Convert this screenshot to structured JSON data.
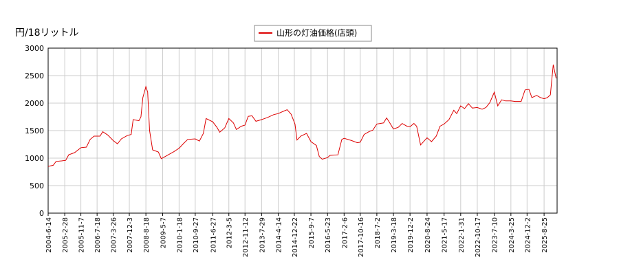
{
  "chart_data": {
    "type": "line",
    "y_label": "円/18リットル",
    "x": [
      "2004-6-14",
      "2004-9-1",
      "2004-10-15",
      "2005-1-10",
      "2005-3-15",
      "2005-5-1",
      "2005-8-1",
      "2005-11-7",
      "2006-2-1",
      "2006-4-1",
      "2006-6-1",
      "2006-9-1",
      "2006-10-15",
      "2007-1-1",
      "2007-3-26",
      "2007-6-1",
      "2007-8-1",
      "2007-11-1",
      "2008-1-1",
      "2008-2-1",
      "2008-5-1",
      "2008-6-1",
      "2008-7-1",
      "2008-8-18",
      "2008-9-15",
      "2008-10-15",
      "2008-12-1",
      "2009-3-1",
      "2009-4-15",
      "2009-7-1",
      "2009-11-1",
      "2010-1-18",
      "2010-4-1",
      "2010-6-1",
      "2010-9-27",
      "2010-12-1",
      "2011-2-1",
      "2011-3-15",
      "2011-6-27",
      "2011-9-1",
      "2011-10-15",
      "2012-1-1",
      "2012-3-5",
      "2012-5-15",
      "2012-7-1",
      "2012-9-15",
      "2012-11-12",
      "2013-1-1",
      "2013-3-1",
      "2013-5-1",
      "2013-7-29",
      "2013-11-1",
      "2014-2-1",
      "2014-4-14",
      "2014-7-1",
      "2014-9-1",
      "2014-11-1",
      "2015-1-1",
      "2015-2-1",
      "2015-4-1",
      "2015-7-1",
      "2015-9-7",
      "2015-12-1",
      "2016-1-15",
      "2016-3-1",
      "2016-5-23",
      "2016-7-1",
      "2016-11-1",
      "2017-1-1",
      "2017-2-6",
      "2017-6-1",
      "2017-9-1",
      "2017-10-16",
      "2017-12-15",
      "2018-3-1",
      "2018-5-1",
      "2018-7-2",
      "2018-10-15",
      "2018-12-1",
      "2019-1-15",
      "2019-3-18",
      "2019-6-1",
      "2019-8-1",
      "2019-10-15",
      "2019-12-2",
      "2020-2-1",
      "2020-3-15",
      "2020-5-15",
      "2020-8-24",
      "2020-11-1",
      "2021-1-15",
      "2021-3-15",
      "2021-5-17",
      "2021-8-1",
      "2021-10-15",
      "2021-12-1",
      "2022-1-31",
      "2022-4-1",
      "2022-6-1",
      "2022-8-1",
      "2022-10-17",
      "2023-1-1",
      "2023-3-1",
      "2023-5-1",
      "2023-7-10",
      "2023-9-1",
      "2023-11-1",
      "2024-1-1",
      "2024-3-25",
      "2024-6-1",
      "2024-9-1",
      "2024-11-1",
      "2025-1-1",
      "2025-2-15",
      "2025-5-1",
      "2025-7-1",
      "2025-8-25",
      "2025-10-15",
      "2025-12-1",
      "2026-1-15",
      "2026-3-1"
    ],
    "series": [
      {
        "name": "山形の灯油価格(店頭)",
        "color": "#dd0000",
        "values": [
          850,
          870,
          940,
          950,
          960,
          1060,
          1100,
          1190,
          1200,
          1340,
          1400,
          1400,
          1480,
          1420,
          1320,
          1260,
          1350,
          1410,
          1430,
          1700,
          1680,
          1750,
          2100,
          2300,
          2200,
          1500,
          1150,
          1110,
          990,
          1040,
          1120,
          1180,
          1270,
          1340,
          1350,
          1310,
          1450,
          1720,
          1660,
          1560,
          1470,
          1550,
          1720,
          1640,
          1520,
          1580,
          1600,
          1760,
          1770,
          1670,
          1700,
          1740,
          1790,
          1810,
          1850,
          1880,
          1800,
          1620,
          1330,
          1400,
          1450,
          1300,
          1230,
          1030,
          980,
          1010,
          1050,
          1060,
          1340,
          1360,
          1320,
          1280,
          1290,
          1430,
          1480,
          1510,
          1620,
          1640,
          1730,
          1650,
          1530,
          1560,
          1630,
          1580,
          1570,
          1630,
          1580,
          1240,
          1370,
          1300,
          1400,
          1580,
          1620,
          1700,
          1870,
          1810,
          1950,
          1900,
          1990,
          1910,
          1920,
          1890,
          1920,
          2010,
          2200,
          1950,
          2060,
          2040,
          2040,
          2030,
          2030,
          2240,
          2250,
          2100,
          2140,
          2100,
          2080,
          2100,
          2150,
          2700,
          2450
        ]
      }
    ],
    "xlim": [
      "2004-6-14",
      "2026-3-16"
    ],
    "xticks": [
      "2004-6-14",
      "2005-2-28",
      "2005-11-7",
      "2006-7-18",
      "2007-3-26",
      "2007-12-3",
      "2008-8-18",
      "2009-5-7",
      "2010-1-18",
      "2010-9-27",
      "2011-6-27",
      "2012-3-5",
      "2012-11-12",
      "2013-7-29",
      "2014-4-14",
      "2014-12-22",
      "2015-9-7",
      "2016-5-23",
      "2017-2-6",
      "2017-10-16",
      "2018-7-2",
      "2019-3-18",
      "2019-12-2",
      "2020-8-24",
      "2021-5-17",
      "2022-1-31",
      "2022-10-17",
      "2023-7-10",
      "2024-3-25",
      "2024-12-2",
      "2025-8-25"
    ],
    "ylim": [
      0,
      3000
    ],
    "yticks": [
      0,
      500,
      1000,
      1500,
      2000,
      2500,
      3000
    ],
    "grid": true,
    "legend": "top"
  }
}
